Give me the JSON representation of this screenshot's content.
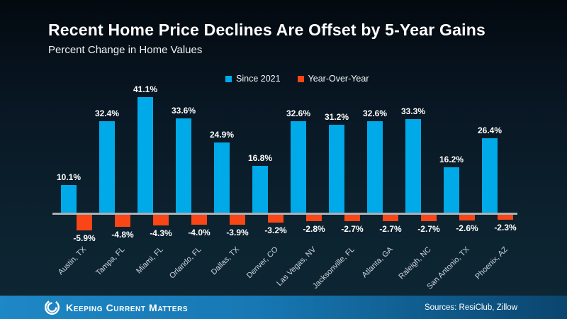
{
  "title": "Recent Home Price Declines Are Offset by 5-Year Gains",
  "subtitle": "Percent Change in Home Values",
  "legend": [
    {
      "label": "Since 2021",
      "color": "#00A9E8"
    },
    {
      "label": "Year-Over-Year",
      "color": "#FA4616"
    }
  ],
  "chart_data": {
    "type": "bar",
    "categories": [
      "Austin, TX",
      "Tampa, FL",
      "Miami, FL",
      "Orlando, FL",
      "Dallas, TX",
      "Denver, CO",
      "Las Vegas, NV",
      "Jacksonville, FL",
      "Atlanta, GA",
      "Raleigh, NC",
      "San Antonio, TX",
      "Phoenix, AZ"
    ],
    "series": [
      {
        "name": "Since 2021",
        "color": "#00A9E8",
        "values": [
          10.1,
          32.4,
          41.1,
          33.6,
          24.9,
          16.8,
          32.6,
          31.2,
          32.6,
          33.3,
          16.2,
          26.4
        ]
      },
      {
        "name": "Year-Over-Year",
        "color": "#FA4616",
        "values": [
          -5.9,
          -4.8,
          -4.3,
          -4.0,
          -3.9,
          -3.2,
          -2.8,
          -2.7,
          -2.7,
          -2.7,
          -2.6,
          -2.3
        ]
      }
    ],
    "value_suffix": "%",
    "title": "Recent Home Price Declines Are Offset by 5-Year Gains",
    "xlabel": "",
    "ylabel": "",
    "ylim": [
      -8,
      45
    ],
    "grid": false,
    "legend_position": "top-center",
    "axis_line_color": "#A9B1B7"
  },
  "footer": {
    "brand": "Keeping Current Matters",
    "sources": "Sources: ResiClub, Zillow"
  },
  "colors": {
    "background_top": "#03090F",
    "background_bottom": "#0E2634",
    "positive_series": "#00A9E8",
    "negative_series": "#FA4616",
    "footer_left": "#1E87C5",
    "footer_right": "#0A456E"
  }
}
